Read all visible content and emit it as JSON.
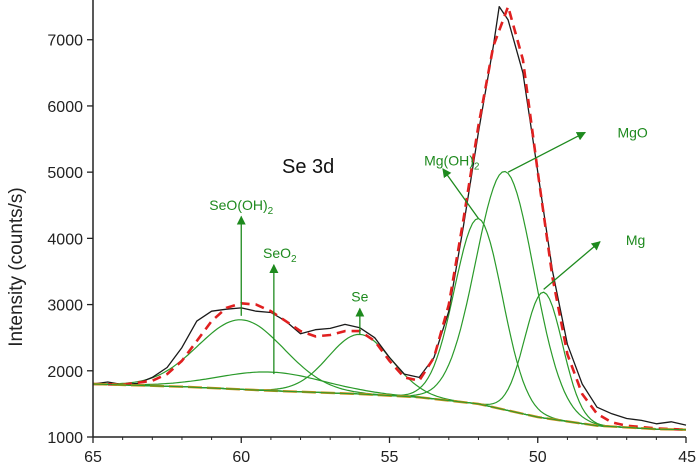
{
  "chart_data": {
    "type": "line",
    "title": "",
    "xlabel": "",
    "ylabel": "Intensity (counts/s)",
    "panel_label": "Se 3d",
    "xlim": [
      65,
      45
    ],
    "ylim": [
      1000,
      7600
    ],
    "x_reversed": true,
    "x_ticks": [
      65,
      60,
      55,
      50,
      45
    ],
    "y_ticks": [
      1000,
      2000,
      3000,
      4000,
      5000,
      6000,
      7000
    ],
    "colors": {
      "measured": "#1a1a1a",
      "envelope": "#e02020",
      "background": "#c8901a",
      "components": "#2a9a2a",
      "annotations": "#1e8a1e"
    },
    "series": [
      {
        "name": "",
        "style": "measured",
        "x": [
          65.0,
          64.5,
          64.0,
          63.5,
          63.0,
          62.5,
          62.0,
          61.5,
          61.0,
          60.5,
          60.0,
          59.5,
          59.0,
          58.5,
          58.0,
          57.5,
          57.0,
          56.5,
          56.0,
          55.5,
          55.0,
          54.5,
          54.0,
          53.5,
          53.0,
          52.5,
          52.0,
          51.5,
          51.3,
          51.0,
          50.5,
          50.0,
          49.5,
          49.0,
          48.5,
          48.0,
          47.5,
          47.0,
          46.5,
          46.0,
          45.5,
          45.0
        ],
        "y": [
          1800,
          1830,
          1790,
          1810,
          1900,
          2050,
          2350,
          2750,
          2900,
          2930,
          2950,
          2900,
          2880,
          2750,
          2560,
          2620,
          2640,
          2700,
          2650,
          2500,
          2200,
          1950,
          1900,
          2200,
          2900,
          4200,
          5600,
          6900,
          7500,
          7300,
          6500,
          5000,
          3500,
          2400,
          1800,
          1450,
          1350,
          1280,
          1250,
          1200,
          1230,
          1180
        ]
      },
      {
        "name": "",
        "style": "envelope",
        "x": [
          65.0,
          64.0,
          63.0,
          62.5,
          62.0,
          61.5,
          61.0,
          60.5,
          60.0,
          59.5,
          59.0,
          58.5,
          58.0,
          57.5,
          57.0,
          56.5,
          56.0,
          55.5,
          55.0,
          54.5,
          54.0,
          53.5,
          53.0,
          52.5,
          52.0,
          51.5,
          51.0,
          50.5,
          50.0,
          49.5,
          49.0,
          48.5,
          48.0,
          47.5,
          47.0,
          46.0,
          45.0
        ],
        "y": [
          1800,
          1790,
          1850,
          1950,
          2150,
          2450,
          2750,
          2950,
          3020,
          3000,
          2900,
          2750,
          2600,
          2520,
          2540,
          2600,
          2600,
          2450,
          2150,
          1900,
          1850,
          2200,
          3000,
          4300,
          5700,
          6900,
          7500,
          6700,
          5000,
          3400,
          2250,
          1650,
          1350,
          1220,
          1170,
          1130,
          1110
        ]
      },
      {
        "name": "",
        "style": "background",
        "x": [
          65.0,
          62.0,
          59.0,
          56.0,
          54.0,
          52.0,
          50.0,
          48.0,
          46.0,
          45.0
        ],
        "y": [
          1800,
          1760,
          1700,
          1650,
          1600,
          1500,
          1300,
          1170,
          1120,
          1110
        ]
      }
    ],
    "components": [
      {
        "name": "SeO(OH)2",
        "center": 60.0,
        "height": 1050,
        "fwhm": 3.4
      },
      {
        "name": "SeO2",
        "center": 59.0,
        "height": 280,
        "fwhm": 4.2
      },
      {
        "name": "Se",
        "center": 56.0,
        "height": 900,
        "fwhm": 2.5
      },
      {
        "name": "Mg(OH)2",
        "center": 52.0,
        "height": 2800,
        "fwhm": 1.9
      },
      {
        "name": "MgO",
        "center": 51.1,
        "height": 3600,
        "fwhm": 2.3
      },
      {
        "name": "Mg",
        "center": 49.8,
        "height": 1900,
        "fwhm": 1.5
      }
    ],
    "annotations": [
      {
        "base": "SeO",
        "paren": "(OH)",
        "sub": "2",
        "tip": [
          60.0,
          2830
        ],
        "end": [
          60.0,
          4330
        ],
        "label_at": [
          60.0,
          4430
        ],
        "anchor": "middle"
      },
      {
        "base": "SeO",
        "paren": "",
        "sub": "2",
        "tip": [
          58.9,
          1950
        ],
        "end": [
          58.9,
          3600
        ],
        "label_at": [
          58.7,
          3700
        ],
        "anchor": "middle"
      },
      {
        "base": "Se",
        "paren": "",
        "sub": "",
        "tip": [
          56.0,
          2550
        ],
        "end": [
          56.0,
          2940
        ],
        "label_at": [
          56.0,
          3050
        ],
        "anchor": "middle"
      },
      {
        "base": "Mg(OH)",
        "paren": "",
        "sub": "2",
        "tip": [
          52.0,
          4300
        ],
        "end": [
          53.2,
          5050
        ],
        "label_at": [
          52.9,
          5100
        ],
        "anchor": "middle"
      },
      {
        "base": "MgO",
        "paren": "",
        "sub": "",
        "tip": [
          51.0,
          5000
        ],
        "end": [
          48.4,
          5600
        ],
        "label_at": [
          46.8,
          5520
        ],
        "anchor": "middle"
      },
      {
        "base": "Mg",
        "paren": "",
        "sub": "",
        "tip": [
          49.8,
          3230
        ],
        "end": [
          47.9,
          3950
        ],
        "label_at": [
          46.7,
          3900
        ],
        "anchor": "middle"
      }
    ]
  }
}
